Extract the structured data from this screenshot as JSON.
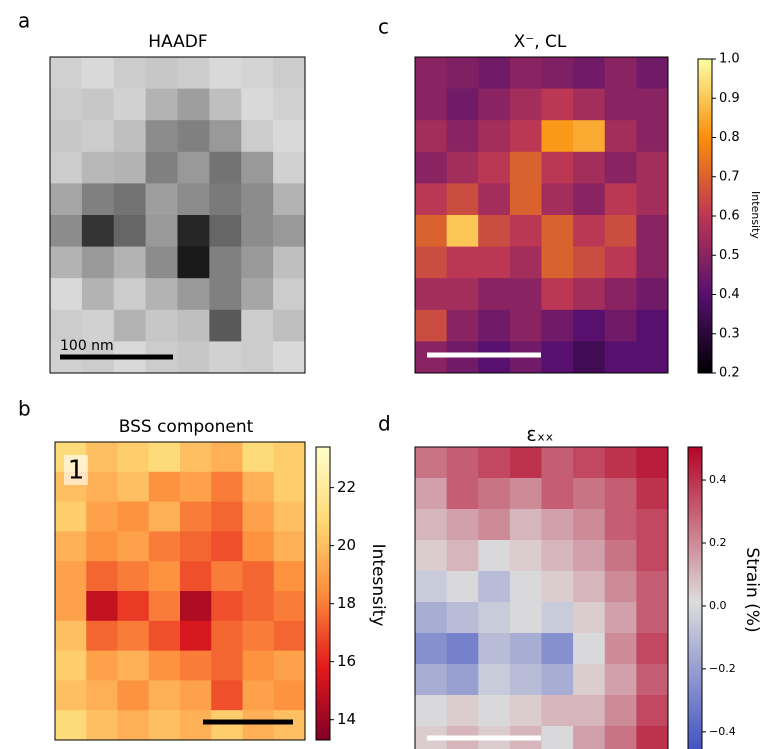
{
  "chart_data": [
    {
      "type": "heatmap",
      "panel_label": "a",
      "title": "HAADF",
      "colormap": "gray",
      "scale_bar_label": "100 nm",
      "values": [
        [
          0.82,
          0.85,
          0.8,
          0.78,
          0.8,
          0.85,
          0.83,
          0.8
        ],
        [
          0.8,
          0.78,
          0.82,
          0.7,
          0.62,
          0.75,
          0.85,
          0.82
        ],
        [
          0.78,
          0.8,
          0.75,
          0.55,
          0.5,
          0.6,
          0.8,
          0.85
        ],
        [
          0.8,
          0.72,
          0.7,
          0.5,
          0.6,
          0.45,
          0.6,
          0.82
        ],
        [
          0.65,
          0.5,
          0.45,
          0.62,
          0.55,
          0.48,
          0.55,
          0.7
        ],
        [
          0.55,
          0.2,
          0.4,
          0.6,
          0.15,
          0.4,
          0.55,
          0.6
        ],
        [
          0.7,
          0.6,
          0.7,
          0.55,
          0.1,
          0.5,
          0.6,
          0.75
        ],
        [
          0.85,
          0.7,
          0.8,
          0.7,
          0.6,
          0.5,
          0.65,
          0.8
        ],
        [
          0.8,
          0.82,
          0.7,
          0.78,
          0.75,
          0.35,
          0.8,
          0.75
        ],
        [
          0.82,
          0.8,
          0.85,
          0.8,
          0.78,
          0.82,
          0.8,
          0.85
        ]
      ]
    },
    {
      "type": "heatmap",
      "panel_label": "b",
      "title": "BSS component",
      "annotation": "1",
      "colormap": "YlOrRd_r",
      "zlim": [
        13.3,
        23.4
      ],
      "zticks": [
        14,
        16,
        18,
        20,
        22
      ],
      "colorbar_label": "Intesnsity",
      "values": [
        [
          21,
          20,
          20.5,
          21,
          20,
          19.5,
          21,
          20.5
        ],
        [
          20,
          19.5,
          20,
          18.5,
          19,
          18,
          19.5,
          20.5
        ],
        [
          20.5,
          19,
          18.5,
          19.5,
          18,
          17.5,
          19,
          20
        ],
        [
          19.5,
          18.5,
          19,
          18,
          17.5,
          17,
          18.5,
          19.5
        ],
        [
          19,
          17.5,
          18,
          18.5,
          17,
          18,
          17.5,
          18.5
        ],
        [
          19,
          15,
          16.5,
          18,
          14.5,
          17,
          17.5,
          18
        ],
        [
          20,
          17.5,
          18,
          17,
          15.5,
          17.5,
          18,
          17.5
        ],
        [
          20.5,
          19,
          19.5,
          18.5,
          18,
          17.5,
          18.5,
          19
        ],
        [
          20,
          19.5,
          18.5,
          19.5,
          19,
          17,
          19,
          18.5
        ],
        [
          21,
          20,
          19.5,
          20,
          19.5,
          20.5,
          19.5,
          20
        ]
      ]
    },
    {
      "type": "heatmap",
      "panel_label": "c",
      "title": "X⁻, CL",
      "colormap": "inferno",
      "zlim": [
        0.2,
        1.0
      ],
      "zticks": [
        0.2,
        0.3,
        0.4,
        0.5,
        0.6,
        0.7,
        0.8,
        0.9,
        {
          "value": 1.0,
          "label": "1.0"
        }
      ],
      "colorbar_label": "Intensity",
      "values": [
        [
          0.5,
          0.48,
          0.45,
          0.5,
          0.48,
          0.45,
          0.5,
          0.45
        ],
        [
          0.5,
          0.45,
          0.5,
          0.55,
          0.6,
          0.55,
          0.5,
          0.5
        ],
        [
          0.55,
          0.5,
          0.55,
          0.6,
          0.82,
          0.85,
          0.55,
          0.5
        ],
        [
          0.5,
          0.55,
          0.6,
          0.7,
          0.6,
          0.55,
          0.5,
          0.55
        ],
        [
          0.6,
          0.65,
          0.55,
          0.7,
          0.55,
          0.5,
          0.6,
          0.55
        ],
        [
          0.7,
          0.9,
          0.65,
          0.6,
          0.7,
          0.6,
          0.65,
          0.5
        ],
        [
          0.65,
          0.6,
          0.6,
          0.55,
          0.7,
          0.65,
          0.6,
          0.5
        ],
        [
          0.55,
          0.55,
          0.5,
          0.5,
          0.6,
          0.55,
          0.5,
          0.45
        ],
        [
          0.65,
          0.5,
          0.45,
          0.5,
          0.45,
          0.4,
          0.45,
          0.4
        ],
        [
          0.5,
          0.45,
          0.4,
          0.45,
          0.4,
          0.35,
          0.4,
          0.4
        ]
      ]
    },
    {
      "type": "heatmap",
      "panel_label": "d",
      "title": "εₓₓ",
      "colormap": "coolwarm",
      "zlim": [
        -0.48,
        0.505
      ],
      "zticks": [
        {
          "value": -0.4,
          "label": "−0.4"
        },
        {
          "value": -0.2,
          "label": "−0.2"
        },
        {
          "value": 0.0,
          "label": "0.0"
        },
        0.2,
        0.4
      ],
      "colorbar_label": "Strain (%)",
      "values": [
        [
          0.25,
          0.3,
          0.35,
          0.4,
          0.3,
          0.35,
          0.4,
          0.45
        ],
        [
          0.15,
          0.3,
          0.25,
          0.2,
          0.3,
          0.25,
          0.3,
          0.4
        ],
        [
          0.1,
          0.15,
          0.2,
          0.1,
          0.15,
          0.2,
          0.3,
          0.35
        ],
        [
          0.05,
          0.1,
          0.0,
          0.05,
          0.1,
          0.15,
          0.25,
          0.35
        ],
        [
          -0.05,
          0.0,
          -0.1,
          0.0,
          0.05,
          0.1,
          0.2,
          0.3
        ],
        [
          -0.15,
          -0.1,
          -0.05,
          0.0,
          -0.05,
          0.05,
          0.15,
          0.3
        ],
        [
          -0.25,
          -0.3,
          -0.1,
          -0.15,
          -0.25,
          0.0,
          0.2,
          0.35
        ],
        [
          -0.15,
          -0.2,
          -0.05,
          -0.1,
          -0.15,
          0.05,
          0.15,
          0.3
        ],
        [
          0.0,
          0.05,
          0.0,
          0.05,
          0.1,
          0.1,
          0.2,
          0.35
        ],
        [
          0.05,
          0.1,
          0.05,
          0.1,
          0.0,
          0.15,
          0.25,
          0.4
        ]
      ]
    }
  ]
}
